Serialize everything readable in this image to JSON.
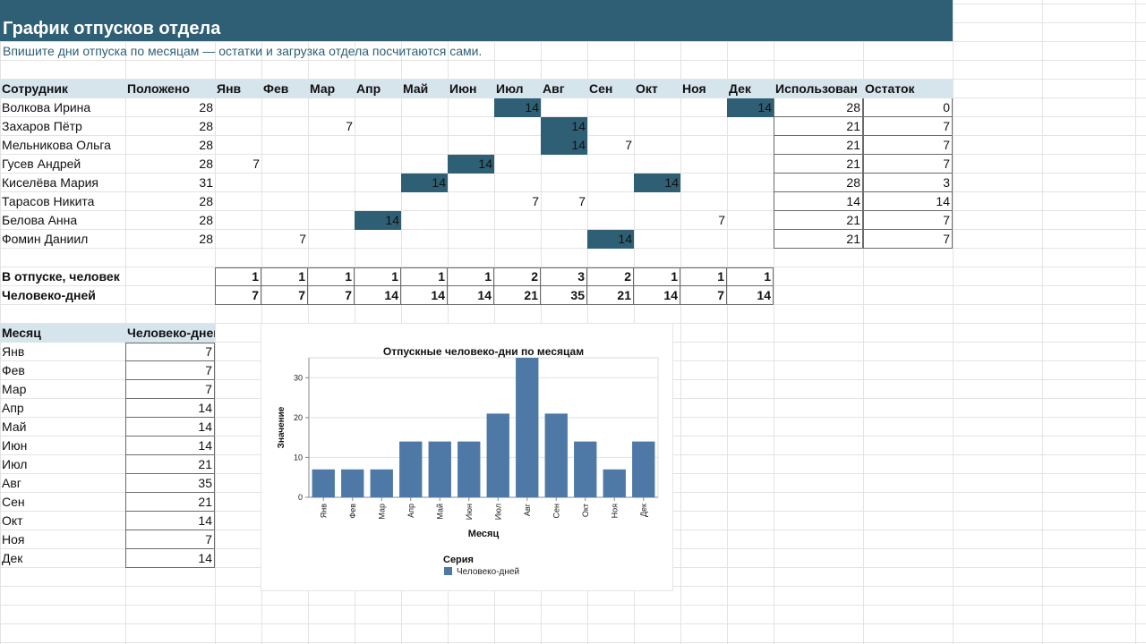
{
  "sheet": {
    "title": "График отпусков отдела",
    "subtitle": "Впишите дни отпуска по месяцам — остатки и загрузка отдела посчитаются сами.",
    "accent": "#2e5f74",
    "header_fill": "#d6e4ec",
    "bar_color": "#4e79a7"
  },
  "table": {
    "headers": [
      "Сотрудник",
      "Положено",
      "Янв",
      "Фев",
      "Мар",
      "Апр",
      "Май",
      "Июн",
      "Июл",
      "Авг",
      "Сен",
      "Окт",
      "Ноя",
      "Дек",
      "Использован",
      "Остаток"
    ],
    "rows": [
      {
        "name": "Волкова Ирина",
        "allowed": "28",
        "months": [
          "",
          "",
          "",
          "",
          "",
          "",
          "14",
          "",
          "",
          "",
          "",
          "14"
        ],
        "used": "28",
        "left": "0"
      },
      {
        "name": "Захаров Пётр",
        "allowed": "28",
        "months": [
          "",
          "",
          "7",
          "",
          "",
          "",
          "",
          "14",
          "",
          "",
          "",
          ""
        ],
        "used": "21",
        "left": "7"
      },
      {
        "name": "Мельникова Ольга",
        "allowed": "28",
        "months": [
          "",
          "",
          "",
          "",
          "",
          "",
          "",
          "14",
          "7",
          "",
          "",
          ""
        ],
        "used": "21",
        "left": "7"
      },
      {
        "name": "Гусев Андрей",
        "allowed": "28",
        "months": [
          "7",
          "",
          "",
          "",
          "",
          "14",
          "",
          "",
          "",
          "",
          "",
          ""
        ],
        "used": "21",
        "left": "7"
      },
      {
        "name": "Киселёва Мария",
        "allowed": "31",
        "months": [
          "",
          "",
          "",
          "",
          "14",
          "",
          "",
          "",
          "",
          "14",
          "",
          ""
        ],
        "used": "28",
        "left": "3"
      },
      {
        "name": "Тарасов Никита",
        "allowed": "28",
        "months": [
          "",
          "",
          "",
          "",
          "",
          "",
          "7",
          "7",
          "",
          "",
          "",
          ""
        ],
        "used": "14",
        "left": "14"
      },
      {
        "name": "Белова Анна",
        "allowed": "28",
        "months": [
          "",
          "",
          "",
          "14",
          "",
          "",
          "",
          "",
          "",
          "",
          "7",
          ""
        ],
        "used": "21",
        "left": "7"
      },
      {
        "name": "Фомин Даниил",
        "allowed": "28",
        "months": [
          "",
          "7",
          "",
          "",
          "",
          "",
          "",
          "",
          "14",
          "",
          "",
          ""
        ],
        "used": "21",
        "left": "7"
      }
    ]
  },
  "summary": {
    "people_label": "В отпуске, человек",
    "people": [
      "1",
      "1",
      "1",
      "1",
      "1",
      "1",
      "2",
      "3",
      "2",
      "1",
      "1",
      "1"
    ],
    "days_label": "Человеко-дней",
    "days": [
      "7",
      "7",
      "7",
      "14",
      "14",
      "14",
      "21",
      "35",
      "21",
      "14",
      "7",
      "14"
    ]
  },
  "monthly": {
    "headers": [
      "Месяц",
      "Человеко-дней"
    ],
    "rows": [
      [
        "Янв",
        "7"
      ],
      [
        "Фев",
        "7"
      ],
      [
        "Мар",
        "7"
      ],
      [
        "Апр",
        "14"
      ],
      [
        "Май",
        "14"
      ],
      [
        "Июн",
        "14"
      ],
      [
        "Июл",
        "21"
      ],
      [
        "Авг",
        "35"
      ],
      [
        "Сен",
        "21"
      ],
      [
        "Окт",
        "14"
      ],
      [
        "Ноя",
        "7"
      ],
      [
        "Дек",
        "14"
      ]
    ]
  },
  "chart_data": {
    "type": "bar",
    "title": "Отпускные человеко-дни по месяцам",
    "xlabel": "Месяц",
    "ylabel": "Значение",
    "categories": [
      "Янв",
      "Фев",
      "Мар",
      "Апр",
      "Май",
      "Июн",
      "Июл",
      "Авг",
      "Сен",
      "Окт",
      "Ноя",
      "Дек"
    ],
    "series": [
      {
        "name": "Человеко-дней",
        "values": [
          7,
          7,
          7,
          14,
          14,
          14,
          21,
          35,
          21,
          14,
          7,
          14
        ]
      }
    ],
    "ylim": [
      0,
      35
    ],
    "yticks": [
      "0",
      "10",
      "20",
      "30"
    ],
    "legend_title": "Серия",
    "legend_position": "bottom",
    "grid": true
  }
}
